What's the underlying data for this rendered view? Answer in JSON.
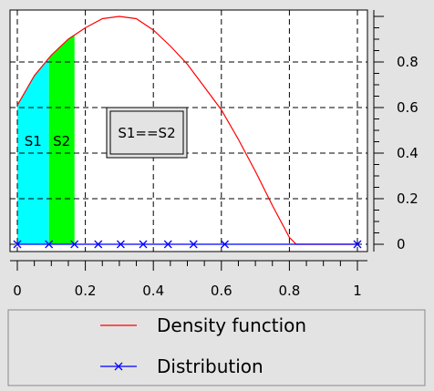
{
  "chart_data": {
    "type": "line",
    "xlim": [
      0,
      1
    ],
    "ylim": [
      0,
      1
    ],
    "grid": true,
    "legend_placement": "bottom",
    "x_ticks": [
      "0",
      "0.2",
      "0.4",
      "0.6",
      "0.8",
      "1"
    ],
    "x_tick_values": [
      0,
      0.2,
      0.4,
      0.6,
      0.8,
      1
    ],
    "y_ticks": [
      "0",
      "0.2",
      "0.4",
      "0.6",
      "0.8"
    ],
    "y_tick_values": [
      0,
      0.2,
      0.4,
      0.6,
      0.8
    ],
    "series": [
      {
        "name": "Density function",
        "color": "#ff0000",
        "x": [
          0,
          0.05,
          0.1,
          0.15,
          0.2,
          0.25,
          0.3,
          0.35,
          0.4,
          0.45,
          0.5,
          0.55,
          0.6,
          0.65,
          0.7,
          0.75,
          0.8,
          0.82,
          0.9,
          0.95,
          1.0
        ],
        "y": [
          0.61,
          0.74,
          0.83,
          0.9,
          0.95,
          0.99,
          1.0,
          0.99,
          0.94,
          0.87,
          0.79,
          0.69,
          0.59,
          0.46,
          0.32,
          0.17,
          0.03,
          0,
          0,
          0,
          0
        ]
      },
      {
        "name": "Distribution",
        "color": "#0000ff",
        "marker": "x",
        "x": [
          0,
          0.093,
          0.168,
          0.238,
          0.304,
          0.37,
          0.443,
          0.518,
          0.61,
          1.0
        ],
        "y": [
          0,
          0,
          0,
          0,
          0,
          0,
          0,
          0,
          0,
          0
        ]
      }
    ],
    "shaded_regions": [
      {
        "label": "S1",
        "x_from": 0,
        "x_to": 0.093,
        "color": "#00ffff"
      },
      {
        "label": "S2",
        "x_from": 0.093,
        "x_to": 0.168,
        "color": "#00ff00"
      }
    ],
    "annotation": "S1==S2"
  }
}
